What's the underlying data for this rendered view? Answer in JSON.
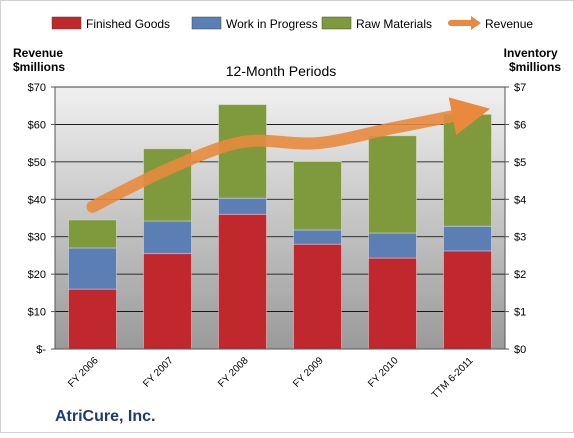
{
  "chart_data": {
    "type": "bar",
    "stacked": true,
    "title": "12-Month Periods",
    "company": "AtriCure, Inc.",
    "categories": [
      "FY 2006",
      "FY 2007",
      "FY 2008",
      "FY 2009",
      "FY 2010",
      "TTM 6-2011"
    ],
    "series": [
      {
        "name": "Finished Goods",
        "axis": "right",
        "color": "#c0282d",
        "values": [
          1.6,
          2.55,
          3.6,
          2.8,
          2.43,
          2.62
        ]
      },
      {
        "name": "Work in Progress",
        "axis": "right",
        "color": "#5b7eb5",
        "values": [
          1.1,
          0.87,
          0.43,
          0.38,
          0.67,
          0.66
        ]
      },
      {
        "name": "Raw Materials",
        "axis": "right",
        "color": "#7f9a3c",
        "values": [
          0.75,
          1.93,
          2.5,
          1.83,
          2.6,
          2.99
        ]
      },
      {
        "name": "Revenue",
        "axis": "left",
        "type": "line",
        "color": "#e8893d",
        "values": [
          38,
          48,
          55.3,
          55,
          59,
          63
        ]
      }
    ],
    "ylabel_left": "Revenue\n$millions",
    "ylabel_right": "Inventory\n$millions",
    "ylim_left": [
      0,
      70
    ],
    "ylim_right": [
      0,
      7
    ],
    "yticks_left": [
      "$-",
      "$10",
      "$20",
      "$30",
      "$40",
      "$50",
      "$60",
      "$70"
    ],
    "yticks_right": [
      "$0",
      "$1",
      "$2",
      "$3",
      "$4",
      "$5",
      "$6",
      "$7"
    ],
    "grid": true,
    "legend_position": "top",
    "colors": {
      "plot_bg_top": "#f0f0f0",
      "plot_bg_bottom": "#9a9a9a",
      "grid": "#000000"
    }
  }
}
